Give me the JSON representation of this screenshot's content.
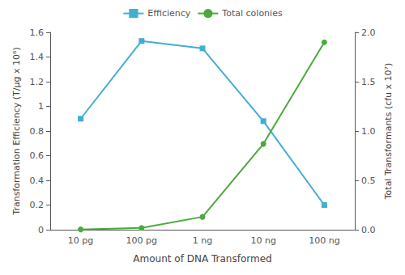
{
  "chart_data": {
    "type": "line",
    "xlabel": "Amount of DNA Transformed",
    "ylabel": "Transformation Efficiency (T/µg x 10⁶)",
    "y2label": "Total Transformants (cfu x 10⁷)",
    "categories": [
      "10 pg",
      "100 pg",
      "1 ng",
      "10 ng",
      "100 ng"
    ],
    "series": [
      {
        "name": "Efficiency",
        "color": "#41aed4",
        "marker": "square",
        "values": [
          0.9,
          1.53,
          1.47,
          0.88,
          0.2
        ]
      },
      {
        "name": "Total colonies",
        "color": "#4aaa3c",
        "marker": "circle",
        "axis": "y2",
        "values": [
          0.003,
          0.018,
          0.13,
          0.87,
          1.9
        ]
      }
    ],
    "ylim": [
      0,
      1.6
    ],
    "yticks": [
      0,
      0.2,
      0.4,
      0.6,
      0.8,
      1,
      1.2,
      1.4,
      1.6
    ],
    "y2lim": [
      0.0,
      2.0
    ],
    "y2ticks": [
      {
        "value": 0,
        "label": "0.0"
      },
      0.5,
      {
        "value": 1,
        "label": "1.0"
      },
      1.5,
      {
        "value": 2,
        "label": "2.0"
      }
    ],
    "grid": false,
    "legend": "top"
  }
}
